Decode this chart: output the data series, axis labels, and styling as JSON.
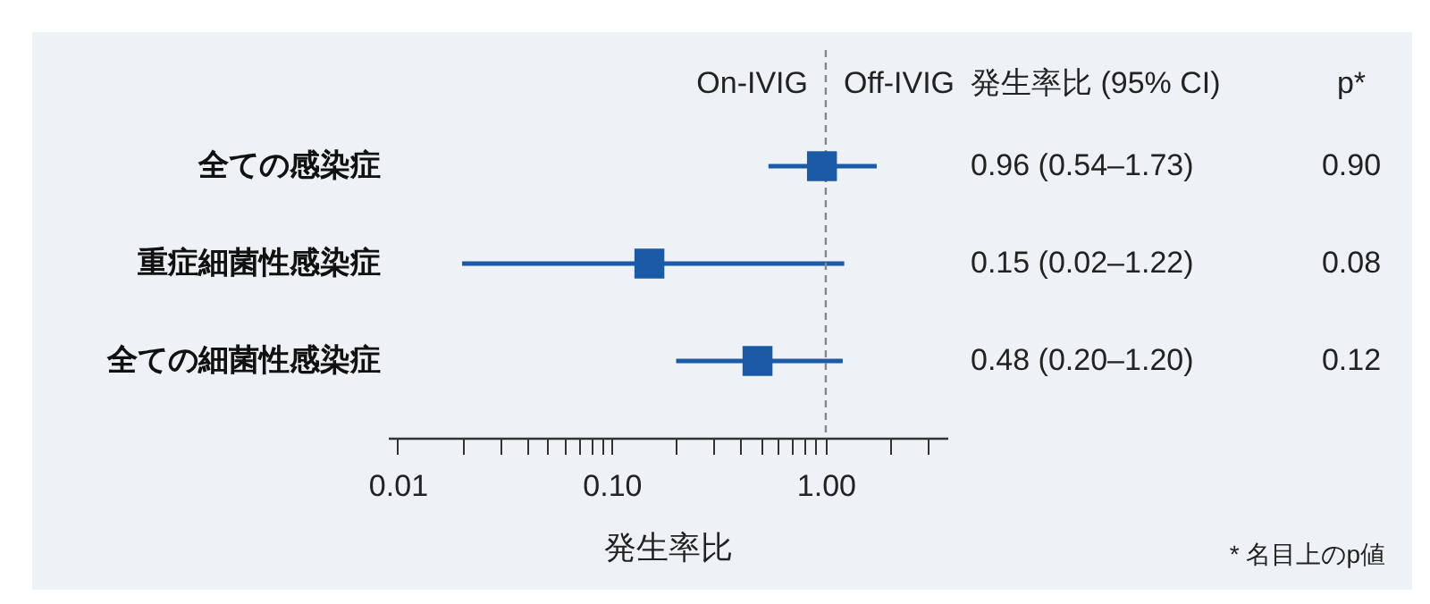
{
  "chart_data": {
    "type": "scatter",
    "orientation": "horizontal",
    "xlabel": "発生率比",
    "categories": [
      "全ての感染症",
      "重症細菌性感染症",
      "全ての細菌性感染症"
    ],
    "values": [
      0.96,
      0.15,
      0.48
    ],
    "errors": [
      [
        0.54,
        1.73
      ],
      [
        0.02,
        1.22
      ],
      [
        0.2,
        1.2
      ]
    ],
    "value_labels": [
      "0.96 (0.54–1.73)",
      "0.15 (0.02–1.22)",
      "0.48 (0.20–1.20)"
    ],
    "color": "#1b5aa6",
    "marker": "square",
    "log": "x",
    "xlim": [
      0.009,
      3.7
    ],
    "xticks": [
      {
        "value": 0.01,
        "label": "0.01"
      },
      {
        "value": 0.02,
        "label": null
      },
      {
        "value": 0.03,
        "label": null
      },
      {
        "value": 0.04,
        "label": null
      },
      {
        "value": 0.05,
        "label": null
      },
      {
        "value": 0.06,
        "label": null
      },
      {
        "value": 0.07,
        "label": null
      },
      {
        "value": 0.08,
        "label": null
      },
      {
        "value": 0.09,
        "label": null
      },
      {
        "value": 0.1,
        "label": "0.10"
      },
      {
        "value": 0.2,
        "label": null
      },
      {
        "value": 0.3,
        "label": null
      },
      {
        "value": 0.4,
        "label": null
      },
      {
        "value": 0.5,
        "label": null
      },
      {
        "value": 0.6,
        "label": null
      },
      {
        "value": 0.7,
        "label": null
      },
      {
        "value": 0.8,
        "label": null
      },
      {
        "value": 0.9,
        "label": null
      },
      {
        "value": 1,
        "label": "1.00"
      },
      {
        "value": 2,
        "label": null
      },
      {
        "value": 3,
        "label": null
      }
    ],
    "ref_lines": [
      {
        "axis": "x",
        "value": 1,
        "color": "#888888",
        "line_style": "dashed"
      }
    ],
    "annotations": [
      "On-IVIG",
      "Off-IVIG",
      "発生率比 (95% CI)",
      "p*",
      "* 名目上のp値",
      "0.90",
      "0.08",
      "0.12"
    ]
  }
}
